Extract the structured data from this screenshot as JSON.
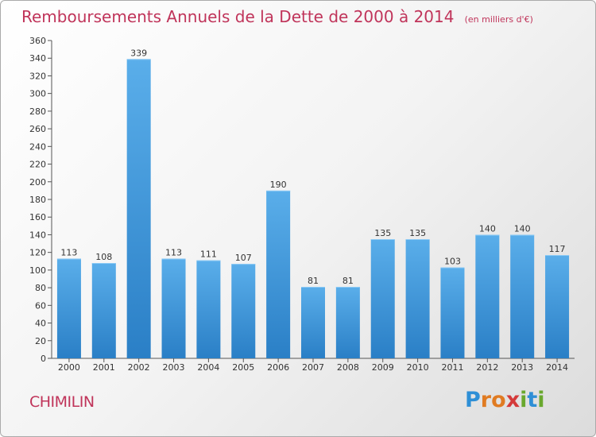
{
  "header": {
    "title": "Remboursements Annuels de la Dette de 2000 à 2014",
    "unit": "(en milliers d'€)"
  },
  "commune": "CHIMILIN",
  "logo": {
    "letters": [
      {
        "char": "P",
        "color": "#2e8fd6"
      },
      {
        "char": "r",
        "color": "#e07b22"
      },
      {
        "char": "o",
        "color": "#e07b22"
      },
      {
        "char": "x",
        "color": "#d43a3a"
      },
      {
        "char": "i",
        "color": "#6aa82e"
      },
      {
        "char": "t",
        "color": "#2e8fd6"
      },
      {
        "char": "i",
        "color": "#6aa82e"
      }
    ]
  },
  "chart_data": {
    "type": "bar",
    "title": "Remboursements Annuels de la Dette de 2000 à 2014",
    "unit": "(en milliers d'€)",
    "xlabel": "",
    "ylabel": "",
    "categories": [
      "2000",
      "2001",
      "2002",
      "2003",
      "2004",
      "2005",
      "2006",
      "2007",
      "2008",
      "2009",
      "2010",
      "2011",
      "2012",
      "2013",
      "2014"
    ],
    "values": [
      113,
      108,
      339,
      113,
      111,
      107,
      190,
      81,
      81,
      135,
      135,
      103,
      140,
      140,
      117
    ],
    "ylim": [
      0,
      360
    ],
    "yticks": [
      0,
      20,
      40,
      60,
      80,
      100,
      120,
      140,
      160,
      180,
      200,
      220,
      240,
      260,
      280,
      300,
      320,
      340,
      360
    ],
    "grid": false,
    "colors": {
      "bar_top": "#5aaeea",
      "bar_bottom": "#2a7fc6",
      "axis": "#555555"
    }
  }
}
